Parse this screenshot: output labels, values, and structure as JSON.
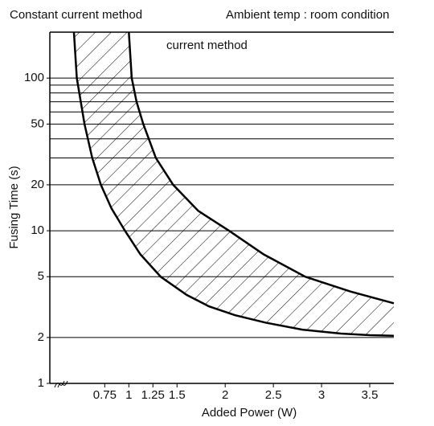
{
  "chart_data": {
    "type": "band",
    "title": "Constant current method",
    "subtitle": "Ambient temp : room condition",
    "annotation": "current method",
    "x_label": "Added Power  (W)",
    "y_label": "Fusing Time (s)",
    "xlim": [
      0.18,
      3.75
    ],
    "ylim": [
      1,
      200
    ],
    "log_y": true,
    "xticks": [
      0.75,
      1,
      1.25,
      1.5,
      2,
      2.5,
      3,
      3.5
    ],
    "yticks": [
      1,
      2,
      5,
      10,
      20,
      50,
      100
    ],
    "gridlines": [
      2,
      5,
      10,
      20,
      30,
      40,
      50,
      60,
      70,
      80,
      90,
      100
    ],
    "color": "#000000",
    "series": [
      {
        "x": [
          0.43,
          0.46,
          0.54,
          0.62,
          0.71,
          0.82,
          0.96,
          1.12,
          1.33,
          1.6,
          1.83,
          2.1,
          2.42,
          2.8,
          3.2,
          3.5,
          3.75
        ],
        "values": [
          200,
          100,
          50,
          30,
          20,
          14,
          10,
          7,
          5,
          3.8,
          3.2,
          2.8,
          2.5,
          2.25,
          2.12,
          2.07,
          2.05
        ]
      },
      {
        "x": [
          1.0,
          1.03,
          1.08,
          1.15,
          1.28,
          1.46,
          1.72,
          2.04,
          2.4,
          2.83,
          3.3,
          3.75
        ],
        "values": [
          200,
          100,
          70,
          50,
          30,
          20,
          13.5,
          10,
          7,
          5,
          4,
          3.35
        ]
      }
    ]
  }
}
